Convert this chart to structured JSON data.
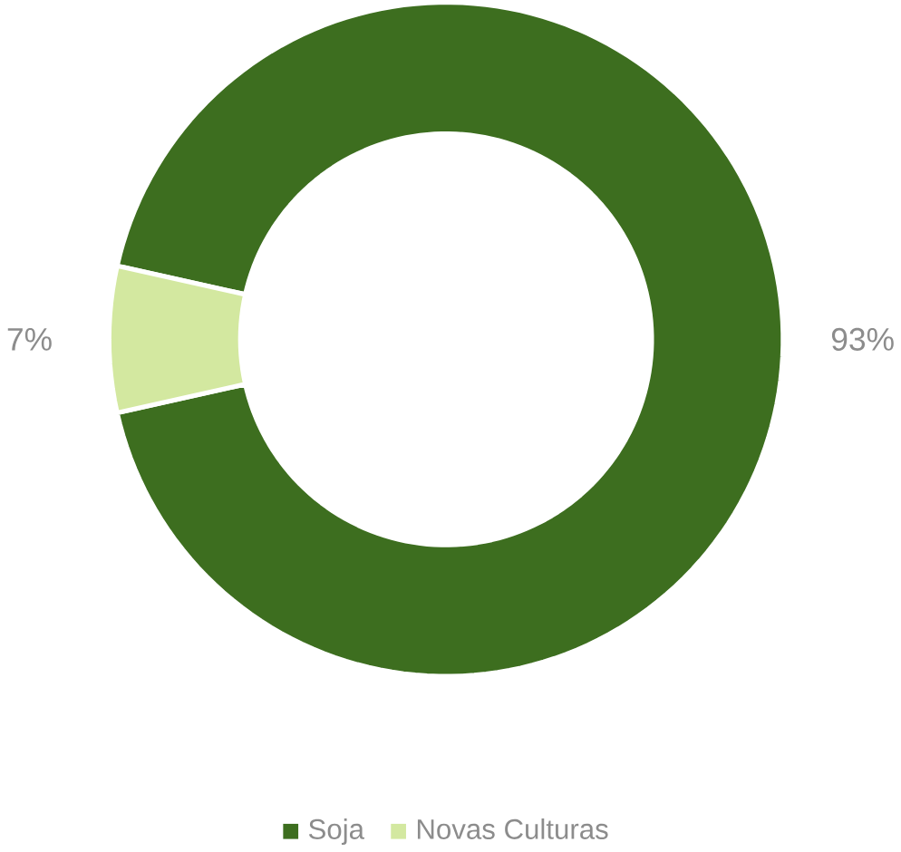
{
  "chart_data": {
    "type": "donut",
    "categories": [
      "Soja",
      "Novas Culturas"
    ],
    "values": [
      93,
      7
    ],
    "value_labels": [
      "93%",
      "7%"
    ],
    "colors": [
      "#3d6e1f",
      "#d3e8a0"
    ],
    "legend": "bottom"
  }
}
